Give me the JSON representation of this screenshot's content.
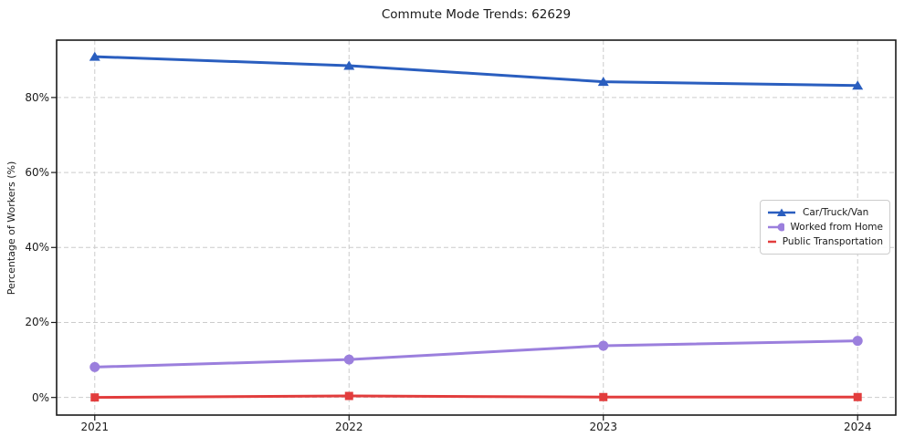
{
  "title": "Commute Mode Trends: 62629",
  "chart_data": {
    "type": "line",
    "title": "Commute Mode Trends: 62629",
    "xlabel": "",
    "ylabel": "Percentage of Workers (%)",
    "x": [
      2021,
      2022,
      2023,
      2024
    ],
    "xtick_labels": [
      "2021",
      "2022",
      "2023",
      "2024"
    ],
    "series": [
      {
        "name": "Car/Truck/Van",
        "values": [
          90.9,
          88.5,
          84.2,
          83.2
        ],
        "color": "#2a5ebf",
        "marker": "triangle"
      },
      {
        "name": "Worked from Home",
        "values": [
          8.1,
          10.1,
          13.8,
          15.1
        ],
        "color": "#9b7fdd",
        "marker": "circle"
      },
      {
        "name": "Public Transportation",
        "values": [
          0.0,
          0.4,
          0.1,
          0.1
        ],
        "color": "#e23d3d",
        "marker": "square"
      }
    ],
    "yticks": [
      0,
      20,
      40,
      60,
      80
    ],
    "ytick_labels": [
      "0%",
      "20%",
      "40%",
      "60%",
      "80%"
    ],
    "ylim": [
      -4.7,
      95.3
    ],
    "xlim": [
      2020.85,
      2024.15
    ],
    "grid": true,
    "grid_style": "dashed",
    "grid_color": "#cccccc",
    "legend_position": "center right"
  }
}
